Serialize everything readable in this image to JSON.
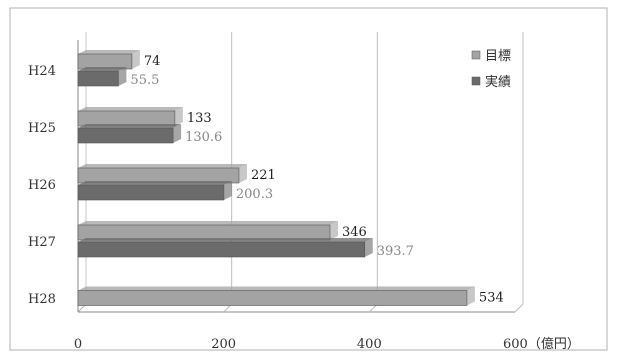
{
  "chart_data": {
    "type": "bar",
    "orientation": "horizontal",
    "categories": [
      "H24",
      "H25",
      "H26",
      "H27",
      "H28"
    ],
    "series": [
      {
        "name": "目標",
        "values": [
          74,
          133,
          221,
          346,
          534
        ],
        "color": "#a3a3a3"
      },
      {
        "name": "実績",
        "values": [
          55.5,
          130.6,
          200.3,
          393.7,
          null
        ],
        "color": "#6b6b6b"
      }
    ],
    "value_labels": {
      "目標": [
        "74",
        "133",
        "221",
        "346",
        "534"
      ],
      "実績": [
        "55.5",
        "130.6",
        "200.3",
        "393.7",
        ""
      ]
    },
    "xlim": [
      0,
      600
    ],
    "xticks": [
      0,
      200,
      400,
      600
    ],
    "xtick_labels": [
      "0",
      "200",
      "400",
      "600（億円）"
    ],
    "grid": true,
    "legend_position": "top-right"
  }
}
